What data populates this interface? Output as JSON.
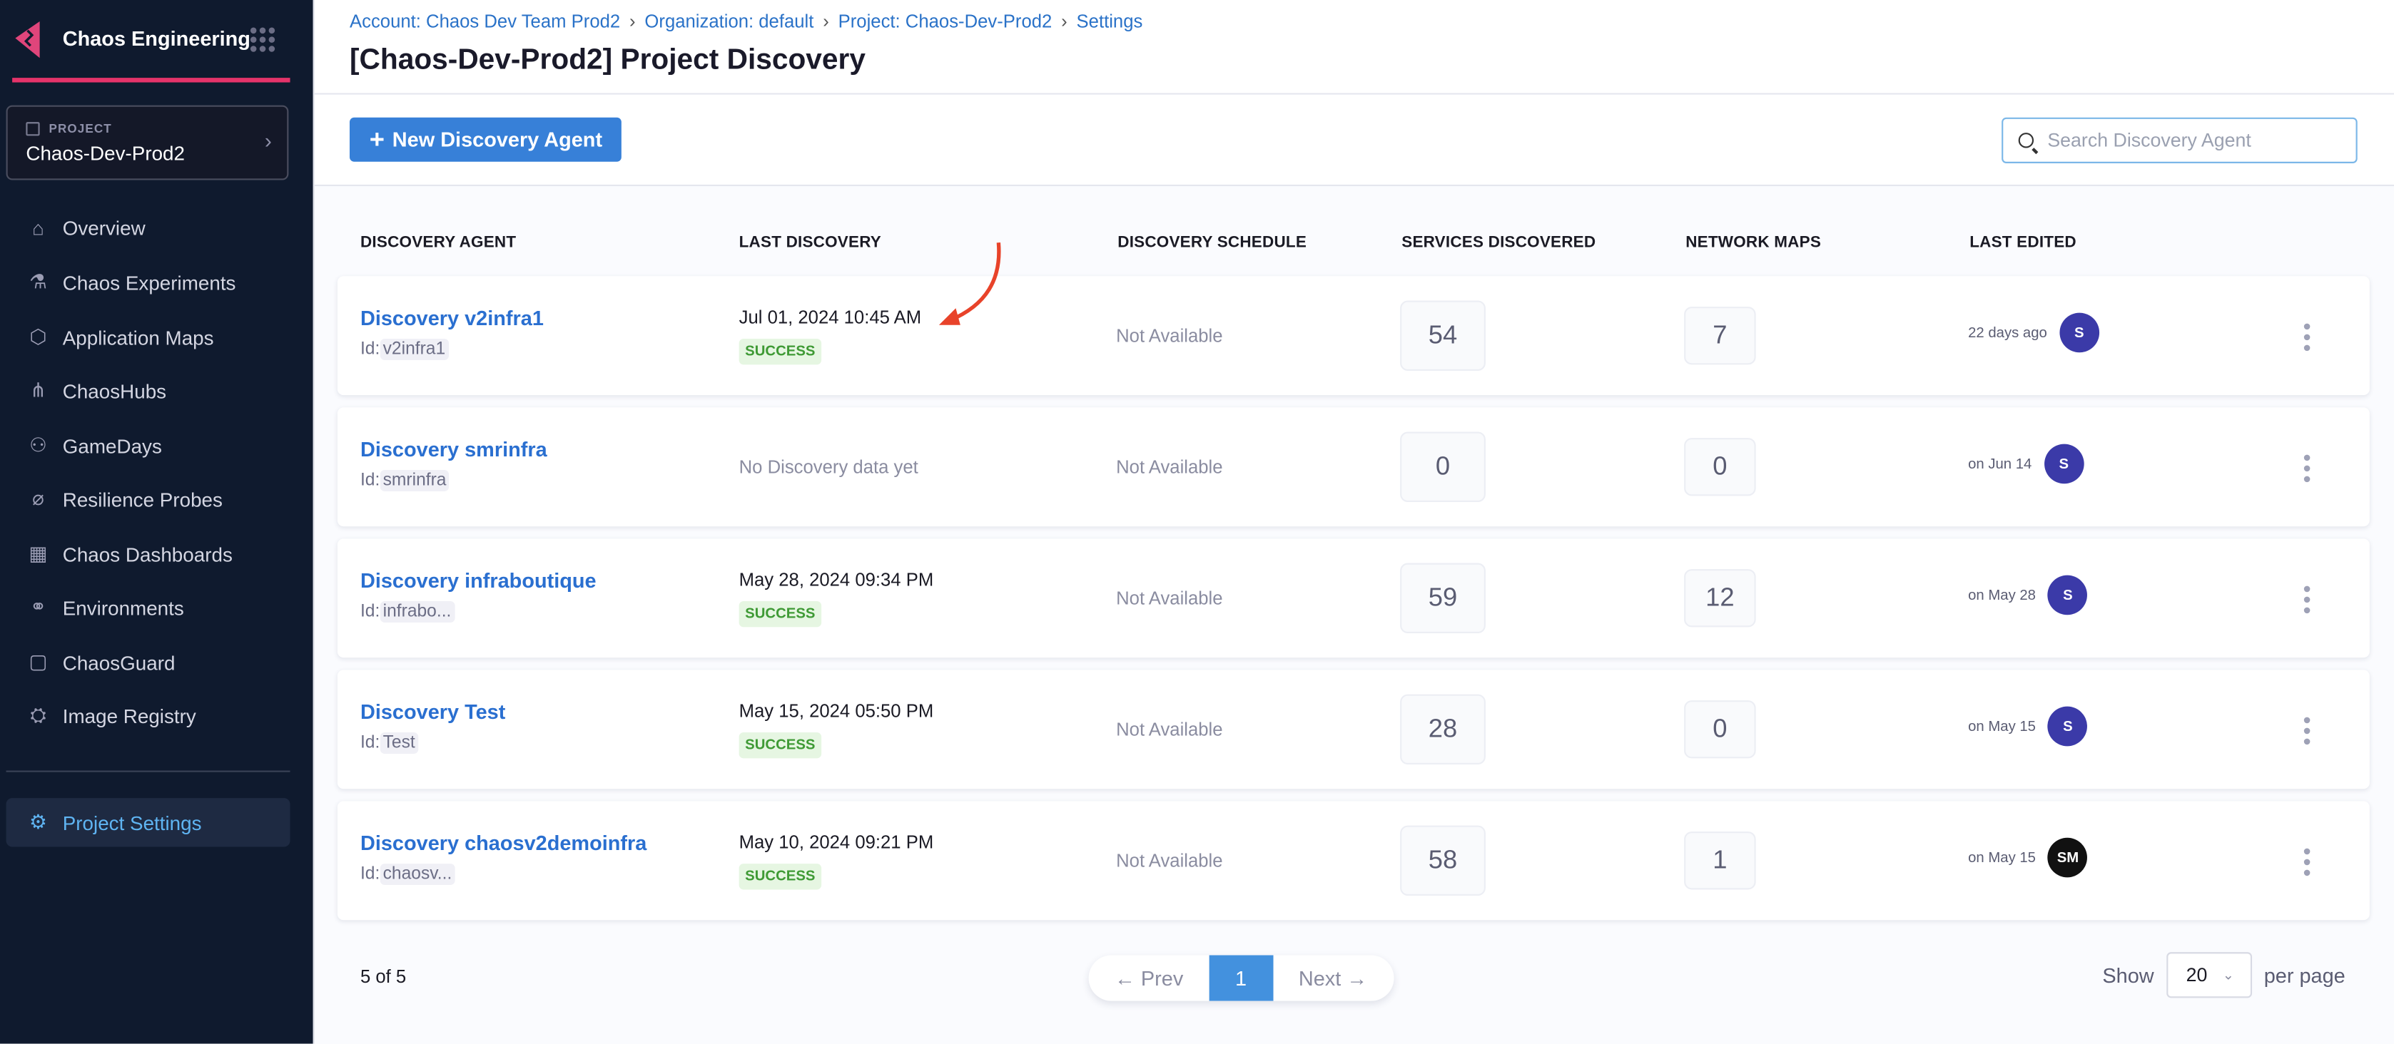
{
  "sidebar": {
    "app_title": "Chaos Engineering",
    "project_label": "PROJECT",
    "project_name": "Chaos-Dev-Prod2",
    "items": [
      {
        "label": "Overview",
        "icon": "home-icon"
      },
      {
        "label": "Chaos Experiments",
        "icon": "flask-icon"
      },
      {
        "label": "Application Maps",
        "icon": "map-icon"
      },
      {
        "label": "ChaosHubs",
        "icon": "hub-icon"
      },
      {
        "label": "GameDays",
        "icon": "people-icon"
      },
      {
        "label": "Resilience Probes",
        "icon": "probe-icon"
      },
      {
        "label": "Chaos Dashboards",
        "icon": "dashboard-icon"
      },
      {
        "label": "Environments",
        "icon": "environment-icon"
      },
      {
        "label": "ChaosGuard",
        "icon": "lock-icon"
      },
      {
        "label": "Image Registry",
        "icon": "registry-icon"
      }
    ],
    "settings": {
      "label": "Project Settings",
      "icon": "gear-icon"
    }
  },
  "header": {
    "breadcrumb": [
      "Account: Chaos Dev Team Prod2",
      "Organization: default",
      "Project: Chaos-Dev-Prod2",
      "Settings"
    ],
    "title": "[Chaos-Dev-Prod2] Project Discovery"
  },
  "toolbar": {
    "new_label": "New Discovery Agent",
    "search_placeholder": "Search Discovery Agent"
  },
  "table": {
    "columns": [
      "DISCOVERY AGENT",
      "LAST DISCOVERY",
      "DISCOVERY SCHEDULE",
      "SERVICES DISCOVERED",
      "NETWORK MAPS",
      "LAST EDITED"
    ],
    "id_prefix": "Id:",
    "rows": [
      {
        "name": "Discovery v2infra1",
        "id": "v2infra1",
        "last_discovery": "Jul 01, 2024 10:45 AM",
        "status": "SUCCESS",
        "schedule": "Not Available",
        "services": "54",
        "network_maps": "7",
        "edited": "22 days ago",
        "avatar": "S",
        "avatar_color": "#3b3aa8"
      },
      {
        "name": "Discovery smrinfra",
        "id": "smrinfra",
        "last_discovery": "No Discovery data yet",
        "status": "",
        "schedule": "Not Available",
        "services": "0",
        "network_maps": "0",
        "edited": "on Jun 14",
        "avatar": "S",
        "avatar_color": "#3b3aa8"
      },
      {
        "name": "Discovery infraboutique",
        "id": "infrabo...",
        "last_discovery": "May 28, 2024 09:34 PM",
        "status": "SUCCESS",
        "schedule": "Not Available",
        "services": "59",
        "network_maps": "12",
        "edited": "on May 28",
        "avatar": "S",
        "avatar_color": "#3b3aa8"
      },
      {
        "name": "Discovery Test",
        "id": "Test",
        "last_discovery": "May 15, 2024 05:50 PM",
        "status": "SUCCESS",
        "schedule": "Not Available",
        "services": "28",
        "network_maps": "0",
        "edited": "on May 15",
        "avatar": "S",
        "avatar_color": "#3b3aa8"
      },
      {
        "name": "Discovery chaosv2demoinfra",
        "id": "chaosv...",
        "last_discovery": "May 10, 2024 09:21 PM",
        "status": "SUCCESS",
        "schedule": "Not Available",
        "services": "58",
        "network_maps": "1",
        "edited": "on May 15",
        "avatar": "SM",
        "avatar_color": "#111111"
      }
    ]
  },
  "footer": {
    "count": "5 of 5",
    "prev": "← Prev",
    "page": "1",
    "next": "Next →",
    "show": "Show",
    "per_page_value": "20",
    "per_page": "per page"
  },
  "colors": {
    "accent": "#e5336a",
    "primary": "#3780d8",
    "link": "#2a6fd0",
    "success": "#3f9a35",
    "sidebar_bg": "#0f1a2e"
  }
}
